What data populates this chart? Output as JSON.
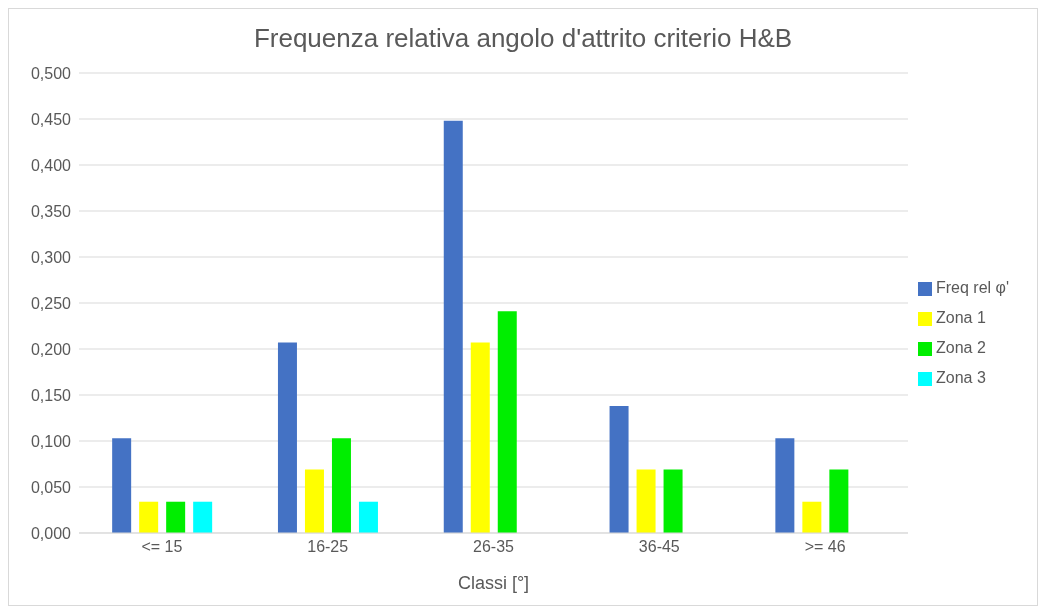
{
  "chart_data": {
    "type": "bar",
    "title": "Frequenza relativa angolo d'attrito criterio H&B",
    "xlabel": "Classi [°]",
    "categories": [
      "<= 15",
      "16-25",
      "26-35",
      "36-45",
      ">= 46"
    ],
    "series": [
      {
        "name": "Freq rel φ'",
        "color": "#4472c4",
        "values": [
          0.103,
          0.207,
          0.448,
          0.138,
          0.103
        ]
      },
      {
        "name": "Zona 1",
        "color": "#ffff00",
        "values": [
          0.034,
          0.069,
          0.207,
          0.069,
          0.034
        ]
      },
      {
        "name": "Zona 2",
        "color": "#00ee00",
        "values": [
          0.034,
          0.103,
          0.241,
          0.069,
          0.069
        ]
      },
      {
        "name": "Zona 3",
        "color": "#00ffff",
        "values": [
          0.034,
          0.034,
          0,
          0,
          0
        ]
      }
    ],
    "ylim": [
      0,
      0.5
    ],
    "yticks": [
      {
        "value": 0,
        "label": "0,000"
      },
      {
        "value": 0.05,
        "label": "0,050"
      },
      {
        "value": 0.1,
        "label": "0,100"
      },
      {
        "value": 0.15,
        "label": "0,150"
      },
      {
        "value": 0.2,
        "label": "0,200"
      },
      {
        "value": 0.25,
        "label": "0,250"
      },
      {
        "value": 0.3,
        "label": "0,300"
      },
      {
        "value": 0.35,
        "label": "0,350"
      },
      {
        "value": 0.4,
        "label": "0,400"
      },
      {
        "value": 0.45,
        "label": "0,450"
      },
      {
        "value": 0.5,
        "label": "0,500"
      }
    ],
    "grid": "y",
    "legend": "right"
  }
}
